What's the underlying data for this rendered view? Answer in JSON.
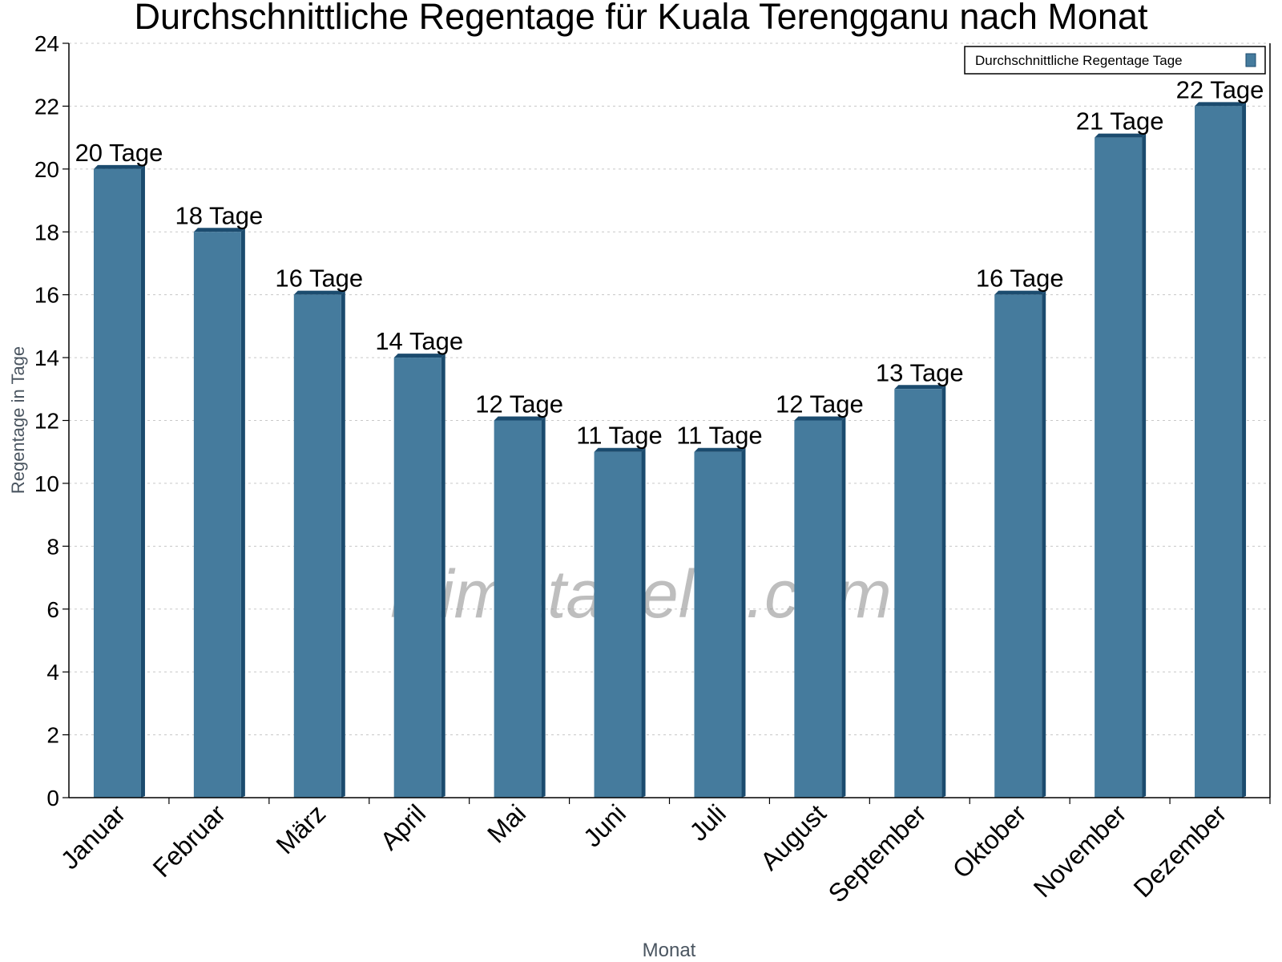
{
  "chart_data": {
    "type": "bar",
    "title": "Durchschnittliche Regentage für Kuala Terengganu nach Monat",
    "xlabel": "Monat",
    "ylabel": "Regentage in Tage",
    "ylim": [
      0,
      24
    ],
    "yticks": [
      0,
      2,
      4,
      6,
      8,
      10,
      12,
      14,
      16,
      18,
      20,
      22,
      24
    ],
    "grid": true,
    "legend_position": "top-right",
    "categories": [
      "Januar",
      "Februar",
      "März",
      "April",
      "Mai",
      "Juni",
      "Juli",
      "August",
      "September",
      "Oktober",
      "November",
      "Dezember"
    ],
    "series": [
      {
        "name": "Durchschnittliche Regentage Tage",
        "values": [
          20,
          18,
          16,
          14,
          12,
          11,
          11,
          12,
          13,
          16,
          21,
          22
        ],
        "labels": [
          "20 Tage",
          "18 Tage",
          "16 Tage",
          "14 Tage",
          "12 Tage",
          "11 Tage",
          "11 Tage",
          "12 Tage",
          "13 Tage",
          "16 Tage",
          "21 Tage",
          "22 Tage"
        ],
        "color": "#457b9d",
        "side_color": "#1b4b6e"
      }
    ],
    "watermark": "klimatabelle.com"
  }
}
